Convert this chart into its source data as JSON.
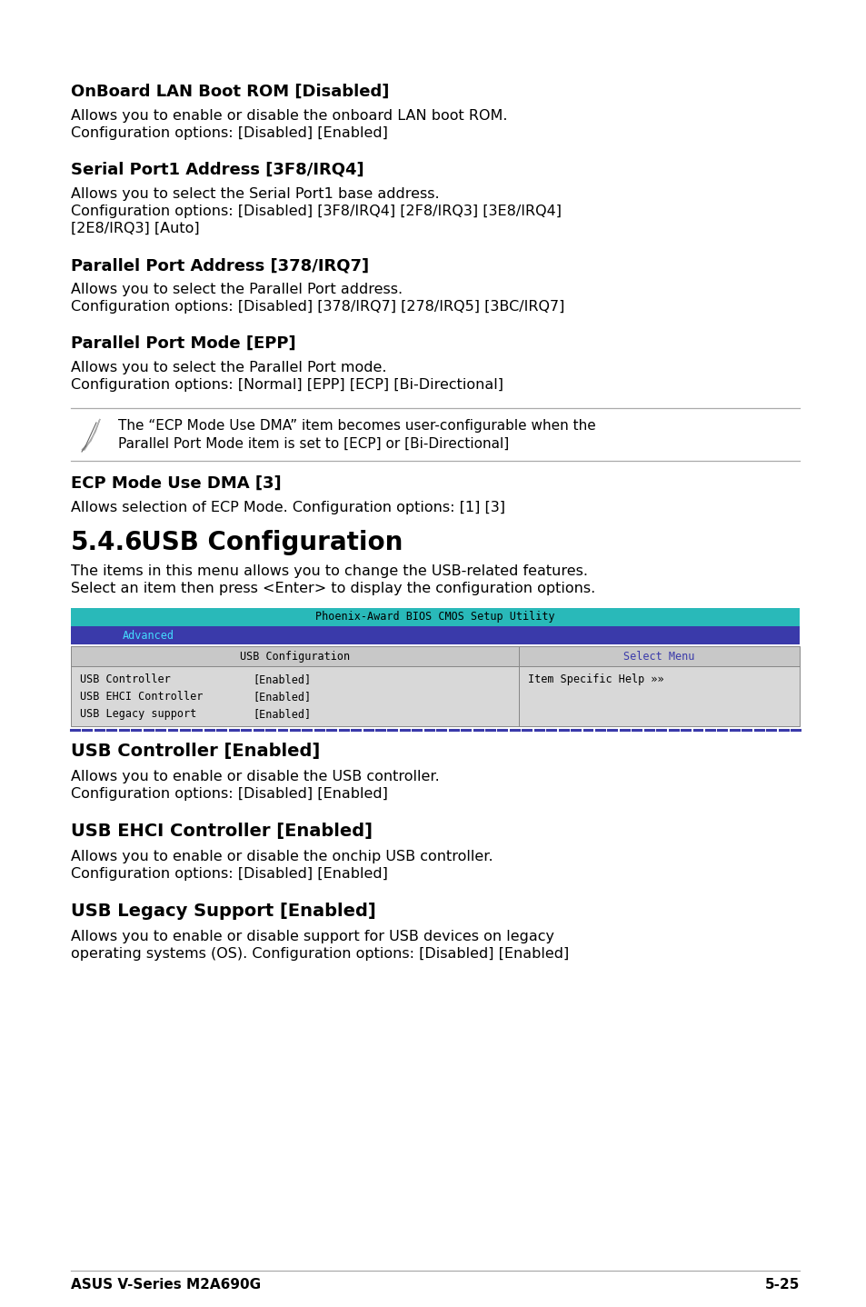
{
  "bg_color": "#ffffff",
  "sections": [
    {
      "heading": "OnBoard LAN Boot ROM [Disabled]",
      "body": [
        "Allows you to enable or disable the onboard LAN boot ROM.",
        "Configuration options: [Disabled] [Enabled]"
      ]
    },
    {
      "heading": "Serial Port1 Address [3F8/IRQ4]",
      "body": [
        "Allows you to select the Serial Port1 base address.",
        "Configuration options: [Disabled] [3F8/IRQ4] [2F8/IRQ3] [3E8/IRQ4]",
        "[2E8/IRQ3] [Auto]"
      ]
    },
    {
      "heading": "Parallel Port Address [378/IRQ7]",
      "body": [
        "Allows you to select the Parallel Port address.",
        "Configuration options: [Disabled] [378/IRQ7] [278/IRQ5] [3BC/IRQ7]"
      ]
    },
    {
      "heading": "Parallel Port Mode [EPP]",
      "body": [
        "Allows you to select the Parallel Port mode.",
        "Configuration options: [Normal] [EPP] [ECP] [Bi-Directional]"
      ]
    }
  ],
  "note_text": [
    "The “ECP Mode Use DMA” item becomes user-configurable when the",
    "Parallel Port Mode item is set to [ECP] or [Bi-Directional]"
  ],
  "ecp_heading": "ECP Mode Use DMA [3]",
  "ecp_body": "Allows selection of ECP Mode. Configuration options: [1] [3]",
  "main_heading_num": "5.4.6",
  "main_heading_text": "  USB Configuration",
  "main_body": [
    "The items in this menu allows you to change the USB-related features.",
    "Select an item then press <Enter> to display the configuration options."
  ],
  "bios_title": "Phoenix-Award BIOS CMOS Setup Utility",
  "bios_title_bg": "#29b9b9",
  "menu_bar_bg": "#3a3aaa",
  "menu_bar_text": "Advanced",
  "menu_bar_text_color": "#44ddff",
  "table_header_bg": "#c8c8c8",
  "table_header_left": "USB Configuration",
  "table_header_right": "Select Menu",
  "table_header_right_color": "#3a3aaa",
  "table_body_bg": "#d8d8d8",
  "table_rows": [
    [
      "USB Controller        ",
      "[Enabled]"
    ],
    [
      "USB EHCI Controller   ",
      "[Enabled]"
    ],
    [
      "USB Legacy support    ",
      "[Enabled]"
    ]
  ],
  "table_right_text": "Item Specific Help »»",
  "table_dashed_color": "#3a3aaa",
  "usb_sections": [
    {
      "heading": "USB Controller [Enabled]",
      "body": [
        "Allows you to enable or disable the USB controller.",
        "Configuration options: [Disabled] [Enabled]"
      ]
    },
    {
      "heading": "USB EHCI Controller [Enabled]",
      "body": [
        "Allows you to enable or disable the onchip USB controller.",
        "Configuration options: [Disabled] [Enabled]"
      ]
    },
    {
      "heading": "USB Legacy Support [Enabled]",
      "body": [
        "Allows you to enable or disable support for USB devices on legacy",
        "operating systems (OS). Configuration options: [Disabled] [Enabled]"
      ]
    }
  ],
  "footer_left": "ASUS V-Series M2A690G",
  "footer_right": "5-25",
  "line_color": "#aaaaaa",
  "border_color": "#888888"
}
